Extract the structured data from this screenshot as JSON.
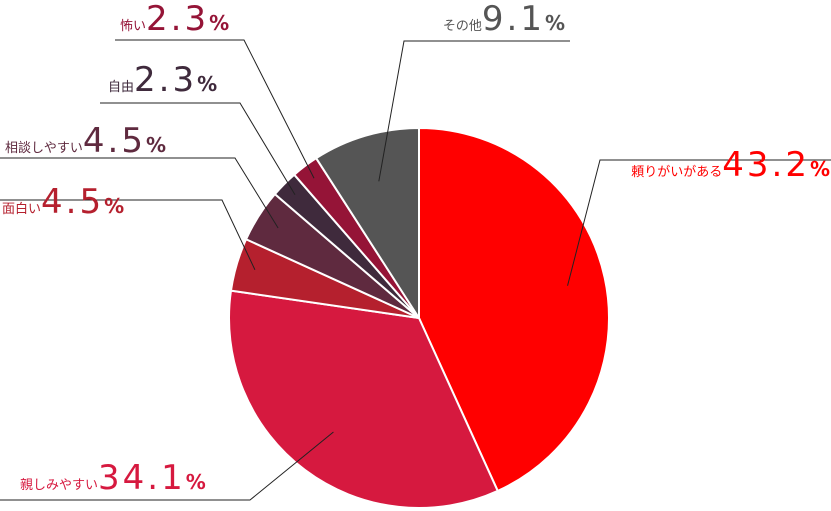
{
  "chart_data": {
    "type": "pie",
    "title": "",
    "unit": "%",
    "start": "12 o'clock",
    "direction": "clockwise",
    "slices": [
      {
        "label": "頼りがいがある",
        "value": 43.2,
        "color": "#FF0000"
      },
      {
        "label": "親しみやすい",
        "value": 34.1,
        "color": "#D6193F"
      },
      {
        "label": "面白い",
        "value": 4.5,
        "color": "#B5202E"
      },
      {
        "label": "相談しやすい",
        "value": 4.5,
        "color": "#5F2A3F"
      },
      {
        "label": "自由",
        "value": 2.3,
        "color": "#3F2A3C"
      },
      {
        "label": "怖い",
        "value": 2.3,
        "color": "#951437"
      },
      {
        "label": "その他",
        "value": 9.1,
        "color": "#555555"
      }
    ]
  }
}
